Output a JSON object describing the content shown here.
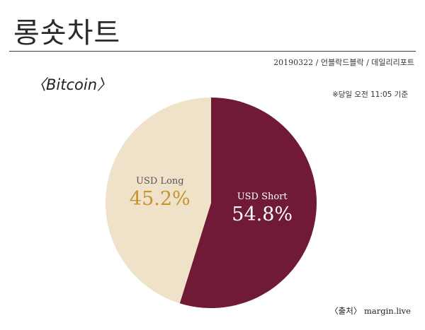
{
  "header": {
    "title": "롱숏차트",
    "byline": "20190322 / 언블락드블락 / 데일리리포트"
  },
  "subject": "〈Bitcoin〉",
  "timestamp": "※당일 오전 11:05 기준",
  "source": "〈출처〉 margin.live",
  "colors": {
    "long": "#f0e2c9",
    "short": "#701a36",
    "long_value_text": "#c8922e",
    "short_value_text": "#ffffff",
    "label_text_long": "#555555",
    "label_text_short": "#ffffff"
  },
  "chart_data": {
    "type": "pie",
    "title": "",
    "slices": [
      {
        "name": "USD Short",
        "value": 54.8,
        "display": "54.8%"
      },
      {
        "name": "USD Long",
        "value": 45.2,
        "display": "45.2%"
      }
    ]
  }
}
